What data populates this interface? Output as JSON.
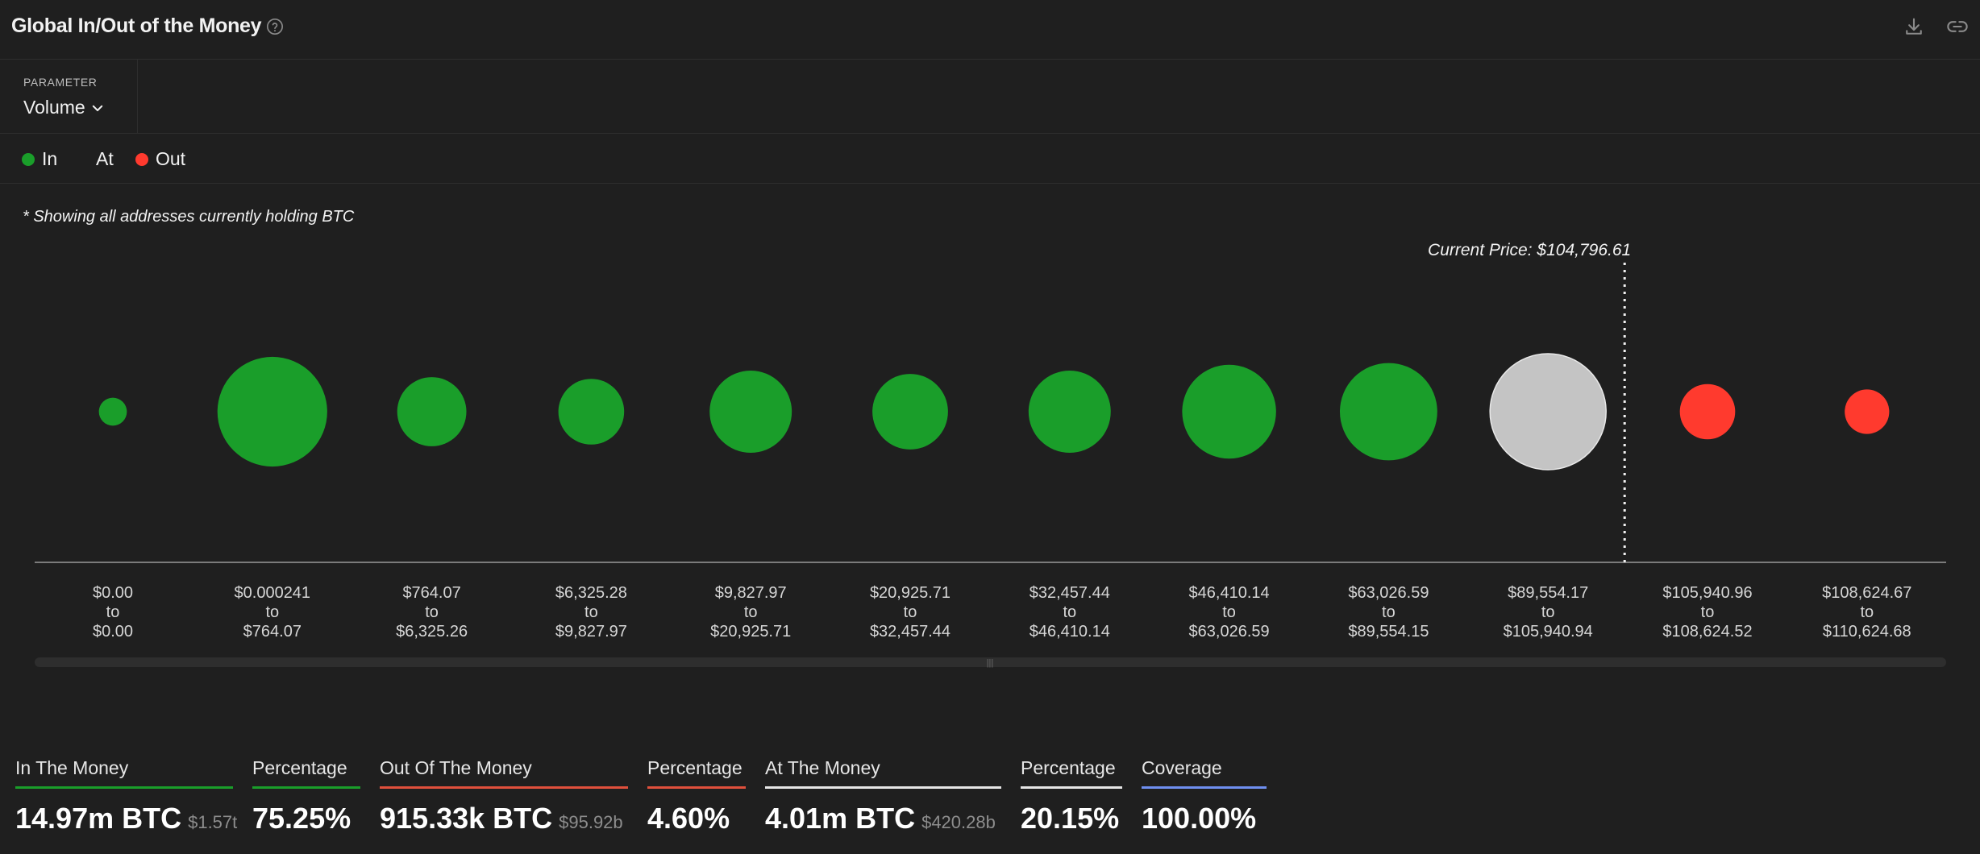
{
  "header": {
    "title": "Global In/Out of the Money",
    "help_icon": "question-circle-icon",
    "download_icon": "download-icon",
    "link_icon": "link-icon"
  },
  "parameter": {
    "label": "PARAMETER",
    "value": "Volume"
  },
  "legend": [
    {
      "label": "In",
      "color": "#1a9e2a"
    },
    {
      "label": "At",
      "color": "#c4c4c4"
    },
    {
      "label": "Out",
      "color": "#ff3a2e"
    }
  ],
  "note": "* Showing all addresses currently holding BTC",
  "colors": {
    "in": "#1a9e2a",
    "at": "#c4c4c4",
    "out": "#ff3a2e",
    "axis": "#9a9a9a",
    "text": "#d6d6d6",
    "coverage": "#6f8ff0"
  },
  "chart_data": {
    "type": "bubble",
    "current_price_label": "Current Price: $104,796.61",
    "current_price": 104796.61,
    "bins": [
      {
        "from": "$0.00",
        "to": "$0.00",
        "status": "in",
        "relative_volume": 0.058
      },
      {
        "from": "$0.000241",
        "to": "$764.07",
        "status": "in",
        "relative_volume": 0.894
      },
      {
        "from": "$764.07",
        "to": "$6,325.26",
        "status": "in",
        "relative_volume": 0.355
      },
      {
        "from": "$6,325.28",
        "to": "$9,827.97",
        "status": "in",
        "relative_volume": 0.321
      },
      {
        "from": "$9,827.97",
        "to": "$20,925.71",
        "status": "in",
        "relative_volume": 0.501
      },
      {
        "from": "$20,925.71",
        "to": "$32,457.44",
        "status": "in",
        "relative_volume": 0.424
      },
      {
        "from": "$32,457.44",
        "to": "$46,410.14",
        "status": "in",
        "relative_volume": 0.501
      },
      {
        "from": "$46,410.14",
        "to": "$63,026.59",
        "status": "in",
        "relative_volume": 0.654
      },
      {
        "from": "$63,026.59",
        "to": "$89,554.15",
        "status": "in",
        "relative_volume": 0.704
      },
      {
        "from": "$89,554.17",
        "to": "$105,940.94",
        "status": "at",
        "relative_volume": 1.0
      },
      {
        "from": "$105,940.96",
        "to": "$108,624.52",
        "status": "out",
        "relative_volume": 0.227
      },
      {
        "from": "$108,624.67",
        "to": "$110,624.68",
        "status": "out",
        "relative_volume": 0.147
      }
    ]
  },
  "summary": [
    {
      "label": "In The Money",
      "value": "14.97m BTC",
      "sub": "$1.57t",
      "color": "#1a9e2a"
    },
    {
      "label": "Percentage",
      "value": "75.25%",
      "sub": "",
      "color": "#1a9e2a"
    },
    {
      "label": "Out Of The Money",
      "value": "915.33k BTC",
      "sub": "$95.92b",
      "color": "#e0503c"
    },
    {
      "label": "Percentage",
      "value": "4.60%",
      "sub": "",
      "color": "#e0503c"
    },
    {
      "label": "At The Money",
      "value": "4.01m BTC",
      "sub": "$420.28b",
      "color": "#e6e6e6"
    },
    {
      "label": "Percentage",
      "value": "20.15%",
      "sub": "",
      "color": "#e6e6e6"
    },
    {
      "label": "Coverage",
      "value": "100.00%",
      "sub": "",
      "color": "#6f8ff0"
    }
  ]
}
